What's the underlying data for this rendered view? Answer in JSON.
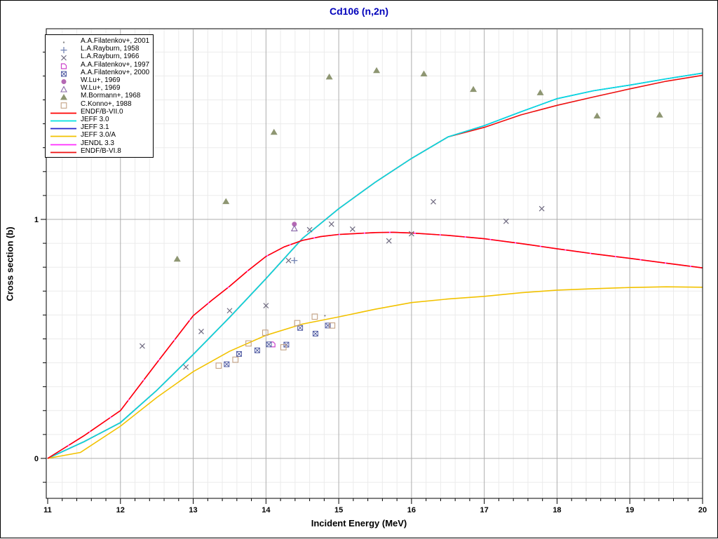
{
  "window": {
    "title": "Cd106 (n,2n)",
    "title_color": "#0000BB"
  },
  "axes": {
    "x_label": "Incident Energy (MeV)",
    "y_label": "Cross section (b)",
    "x_tick_labels": [
      "11",
      "12",
      "13",
      "14",
      "15",
      "16",
      "17",
      "18",
      "19",
      "20"
    ],
    "y_tick_labels": [
      "0",
      "1"
    ]
  },
  "legend": {
    "entries": [
      {
        "kind": "symbol",
        "symbol": "dot",
        "color": "#8C8C8C",
        "label": "A.A.Filatenkov+, 2001"
      },
      {
        "kind": "symbol",
        "symbol": "plus",
        "color": "#7585B5",
        "label": "L.A.Rayburn, 1958"
      },
      {
        "kind": "symbol",
        "symbol": "cross",
        "color": "#6F6A80",
        "label": "L.A.Rayburn, 1966"
      },
      {
        "kind": "symbol",
        "symbol": "notch-square",
        "color": "#CC44CC",
        "label": "A.A.Filatenkov+, 1997"
      },
      {
        "kind": "symbol",
        "symbol": "cross-square",
        "color": "#5560A5",
        "label": "A.A.Filatenkov+, 2000"
      },
      {
        "kind": "symbol",
        "symbol": "circle-filled",
        "color": "#B468B4",
        "label": "W.Lu+, 1969"
      },
      {
        "kind": "symbol",
        "symbol": "triangle-open",
        "color": "#8A6AAA",
        "label": "W.Lu+, 1969"
      },
      {
        "kind": "symbol",
        "symbol": "triangle-filled",
        "color": "#8E9672",
        "label": "M.Bormann+, 1968"
      },
      {
        "kind": "symbol",
        "symbol": "square-open",
        "color": "#C4A284",
        "label": "C.Konno+, 1988"
      },
      {
        "kind": "line",
        "color": "#FF0000",
        "label": "ENDF/B-VII.0"
      },
      {
        "kind": "line",
        "color": "#00E1E1",
        "label": "JEFF 3.0"
      },
      {
        "kind": "line",
        "color": "#2222CC",
        "label": "JEFF 3.1"
      },
      {
        "kind": "line",
        "color": "#F2C200",
        "label": "JEFF 3.0/A"
      },
      {
        "kind": "line",
        "color": "#FF2BFF",
        "label": "JENDL 3.3"
      },
      {
        "kind": "line",
        "color": "#ED0F0F",
        "label": "ENDF/B-VI.8"
      }
    ]
  },
  "chart_data": {
    "type": "scatter",
    "title": "Cd106 (n,2n)",
    "xlabel": "Incident Energy (MeV)",
    "ylabel": "Cross section (b)",
    "x_axis": {
      "min": 11,
      "max": 20,
      "major_tick": 1,
      "minor_tick": 0.2
    },
    "y_axis": {
      "view_min": -0.167,
      "view_max": 1.797,
      "major_ticks": [
        0,
        1
      ],
      "minor_tick": 0.1
    },
    "grid": {
      "minor_color": "#EBEBEB",
      "major_v_color": "#ADADAD",
      "major_h_color": "#ADADAD"
    },
    "experimental_series": [
      {
        "id": "filatenkov-2001",
        "name": "A.A.Filatenkov+, 2001",
        "symbol": "dot",
        "color": "#8C8C8C",
        "points": [
          [
            14.81,
            0.597
          ]
        ]
      },
      {
        "id": "rayburn-1958",
        "name": "L.A.Rayburn, 1958",
        "symbol": "plus",
        "color": "#7585B5",
        "points": [
          [
            14.39,
            0.828
          ]
        ]
      },
      {
        "id": "rayburn-1966",
        "name": "L.A.Rayburn, 1966",
        "symbol": "cross",
        "color": "#6F6A80",
        "points": [
          [
            12.3,
            0.47
          ],
          [
            12.9,
            0.382
          ],
          [
            13.11,
            0.531
          ],
          [
            13.5,
            0.618
          ],
          [
            14.0,
            0.639
          ],
          [
            14.31,
            0.828
          ],
          [
            14.6,
            0.957
          ],
          [
            14.9,
            0.98
          ],
          [
            15.19,
            0.959
          ],
          [
            15.69,
            0.91
          ],
          [
            16.0,
            0.94
          ],
          [
            16.3,
            1.074
          ],
          [
            17.3,
            0.992
          ],
          [
            17.79,
            1.045
          ]
        ]
      },
      {
        "id": "filatenkov-1997",
        "name": "A.A.Filatenkov+, 1997",
        "symbol": "notch-square",
        "color": "#CC44CC",
        "points": [
          [
            14.09,
            0.477
          ]
        ]
      },
      {
        "id": "filatenkov-2000",
        "name": "A.A.Filatenkov+, 2000",
        "symbol": "cross-square",
        "color": "#5560A5",
        "points": [
          [
            13.46,
            0.394
          ],
          [
            13.63,
            0.437
          ],
          [
            13.88,
            0.452
          ],
          [
            14.04,
            0.477
          ],
          [
            14.28,
            0.476
          ],
          [
            14.47,
            0.546
          ],
          [
            14.68,
            0.522
          ],
          [
            14.85,
            0.556
          ]
        ]
      },
      {
        "id": "lu-1969-circle",
        "name": "W.Lu+, 1969",
        "symbol": "circle-filled",
        "color": "#B468B4",
        "points": [
          [
            14.39,
            0.98
          ]
        ]
      },
      {
        "id": "lu-1969-triangle",
        "name": "W.Lu+, 1969",
        "symbol": "triangle-open",
        "color": "#8A6AAA",
        "points": [
          [
            14.39,
            0.962
          ]
        ]
      },
      {
        "id": "bormann-1968",
        "name": "M.Bormann+, 1968",
        "symbol": "triangle-filled",
        "color": "#8E9672",
        "points": [
          [
            12.78,
            0.835
          ],
          [
            13.45,
            1.076
          ],
          [
            14.11,
            1.366
          ],
          [
            14.87,
            1.597
          ],
          [
            15.52,
            1.624
          ],
          [
            16.17,
            1.61
          ],
          [
            16.85,
            1.545
          ],
          [
            17.77,
            1.531
          ],
          [
            18.55,
            1.434
          ],
          [
            19.41,
            1.438
          ]
        ]
      },
      {
        "id": "konno-1988",
        "name": "C.Konno+, 1988",
        "symbol": "square-open",
        "color": "#C4A284",
        "points": [
          [
            13.35,
            0.388
          ],
          [
            13.58,
            0.413
          ],
          [
            13.76,
            0.481
          ],
          [
            13.99,
            0.526
          ],
          [
            14.24,
            0.465
          ],
          [
            14.43,
            0.566
          ],
          [
            14.67,
            0.593
          ],
          [
            14.91,
            0.556
          ]
        ]
      }
    ],
    "curves": [
      {
        "id": "jeff-31",
        "name": "JEFF 3.1",
        "color": "#2222CC",
        "dash": "",
        "points": [
          [
            11,
            0
          ],
          [
            11.5,
            0.07
          ],
          [
            12,
            0.15
          ],
          [
            12.5,
            0.285
          ],
          [
            13,
            0.435
          ],
          [
            13.5,
            0.59
          ],
          [
            14,
            0.752
          ],
          [
            14.5,
            0.92
          ],
          [
            15,
            1.045
          ],
          [
            15.5,
            1.155
          ],
          [
            16,
            1.255
          ],
          [
            16.5,
            1.345
          ],
          [
            17,
            1.392
          ],
          [
            17.5,
            1.45
          ],
          [
            18,
            1.505
          ],
          [
            18.5,
            1.538
          ],
          [
            19,
            1.562
          ],
          [
            19.5,
            1.588
          ],
          [
            20,
            1.612
          ]
        ]
      },
      {
        "id": "endfb-vi8",
        "name": "ENDF/B-VI.8",
        "color": "#ED0F0F",
        "dash": "",
        "points": [
          [
            11,
            0
          ],
          [
            11.5,
            0.07
          ],
          [
            12,
            0.15
          ],
          [
            12.5,
            0.285
          ],
          [
            13,
            0.435
          ],
          [
            13.5,
            0.59
          ],
          [
            14,
            0.752
          ],
          [
            14.5,
            0.92
          ],
          [
            15,
            1.045
          ],
          [
            15.5,
            1.155
          ],
          [
            16,
            1.255
          ],
          [
            16.5,
            1.345
          ],
          [
            17,
            1.385
          ],
          [
            17.5,
            1.437
          ],
          [
            18,
            1.477
          ],
          [
            18.5,
            1.512
          ],
          [
            19,
            1.546
          ],
          [
            19.5,
            1.578
          ],
          [
            20,
            1.603
          ]
        ]
      },
      {
        "id": "jeff-30",
        "name": "JEFF 3.0",
        "color": "#00E1E1",
        "dash": "",
        "points": [
          [
            11,
            0
          ],
          [
            11.5,
            0.07
          ],
          [
            12,
            0.15
          ],
          [
            12.5,
            0.285
          ],
          [
            13,
            0.435
          ],
          [
            13.5,
            0.59
          ],
          [
            14,
            0.752
          ],
          [
            14.5,
            0.92
          ],
          [
            15,
            1.045
          ],
          [
            15.5,
            1.155
          ],
          [
            16,
            1.255
          ],
          [
            16.5,
            1.345
          ],
          [
            17,
            1.392
          ],
          [
            17.5,
            1.45
          ],
          [
            18,
            1.505
          ],
          [
            18.5,
            1.538
          ],
          [
            19,
            1.562
          ],
          [
            19.5,
            1.588
          ],
          [
            20,
            1.612
          ]
        ]
      },
      {
        "id": "jeff-30a",
        "name": "JEFF 3.0/A",
        "color": "#F2C200",
        "dash": "",
        "points": [
          [
            11,
            0
          ],
          [
            11.45,
            0.025
          ],
          [
            12,
            0.135
          ],
          [
            12.5,
            0.255
          ],
          [
            13,
            0.363
          ],
          [
            13.5,
            0.448
          ],
          [
            14,
            0.515
          ],
          [
            14.5,
            0.562
          ],
          [
            15,
            0.592
          ],
          [
            15.5,
            0.624
          ],
          [
            16,
            0.652
          ],
          [
            16.5,
            0.667
          ],
          [
            17,
            0.678
          ],
          [
            17.5,
            0.693
          ],
          [
            18,
            0.704
          ],
          [
            18.5,
            0.71
          ],
          [
            19,
            0.715
          ],
          [
            19.5,
            0.718
          ],
          [
            20,
            0.716
          ]
        ]
      },
      {
        "id": "jendl-33",
        "name": "JENDL 3.3",
        "color": "#FF2BFF",
        "dash": "",
        "points": [
          [
            11,
            0
          ],
          [
            11.5,
            0.095
          ],
          [
            12,
            0.2
          ],
          [
            12.5,
            0.4
          ],
          [
            13,
            0.597
          ],
          [
            13.25,
            0.66
          ],
          [
            13.5,
            0.72
          ],
          [
            13.75,
            0.785
          ],
          [
            14,
            0.845
          ],
          [
            14.25,
            0.885
          ],
          [
            14.5,
            0.912
          ],
          [
            14.75,
            0.928
          ],
          [
            15,
            0.937
          ],
          [
            15.5,
            0.945
          ],
          [
            15.75,
            0.946
          ],
          [
            16,
            0.943
          ],
          [
            16.5,
            0.933
          ],
          [
            17,
            0.919
          ],
          [
            17.5,
            0.899
          ],
          [
            18,
            0.877
          ],
          [
            18.5,
            0.856
          ],
          [
            19,
            0.837
          ],
          [
            19.5,
            0.817
          ],
          [
            20,
            0.797
          ]
        ]
      },
      {
        "id": "endfb-vii0",
        "name": "ENDF/B-VII.0",
        "color": "#FF0000",
        "dash": "34 2",
        "points": [
          [
            11,
            0
          ],
          [
            11.5,
            0.095
          ],
          [
            12,
            0.2
          ],
          [
            12.5,
            0.4
          ],
          [
            13,
            0.597
          ],
          [
            13.25,
            0.66
          ],
          [
            13.5,
            0.72
          ],
          [
            13.75,
            0.785
          ],
          [
            14,
            0.845
          ],
          [
            14.25,
            0.885
          ],
          [
            14.5,
            0.912
          ],
          [
            14.75,
            0.928
          ],
          [
            15,
            0.937
          ],
          [
            15.5,
            0.945
          ],
          [
            15.75,
            0.946
          ],
          [
            16,
            0.943
          ],
          [
            16.5,
            0.933
          ],
          [
            17,
            0.919
          ],
          [
            17.5,
            0.899
          ],
          [
            18,
            0.877
          ],
          [
            18.5,
            0.856
          ],
          [
            19,
            0.837
          ],
          [
            19.5,
            0.817
          ],
          [
            20,
            0.797
          ]
        ]
      }
    ]
  }
}
